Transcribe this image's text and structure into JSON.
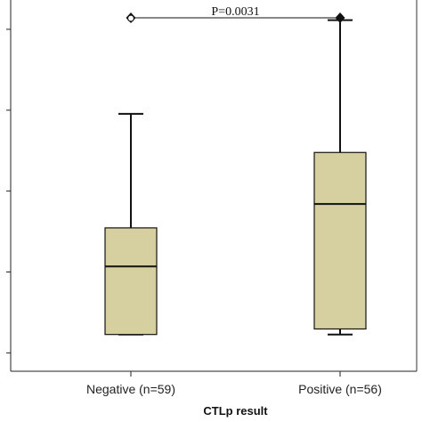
{
  "chart_data": {
    "type": "boxplot",
    "title": "",
    "xlabel": "CTLp result",
    "ylabel": "",
    "categories": [
      "Negative (n=59)",
      "Positive (n=56)"
    ],
    "ylim": [
      0,
      1
    ],
    "y_tick_values": [
      0.05,
      0.27,
      0.49,
      0.71,
      0.93
    ],
    "y_tick_labels_visible": false,
    "boxes": [
      {
        "category": "Negative (n=59)",
        "whisker_low": 0.1,
        "q1": 0.1,
        "median": 0.285,
        "q3": 0.39,
        "whisker_high": 0.7,
        "outliers": [
          0.96
        ]
      },
      {
        "category": "Positive (n=56)",
        "whisker_low": 0.1,
        "q1": 0.115,
        "median": 0.455,
        "q3": 0.595,
        "whisker_high": 0.955,
        "outliers": []
      }
    ],
    "annotation": {
      "text": "P=0.0031",
      "between": [
        "Negative (n=59)",
        "Positive (n=56)"
      ],
      "y": 1.0
    },
    "colors": {
      "box_fill": "#d6d0a0",
      "box_stroke": "#111111",
      "axis": "#222222",
      "frame": "#333333"
    },
    "grid": false,
    "legend": "none"
  }
}
